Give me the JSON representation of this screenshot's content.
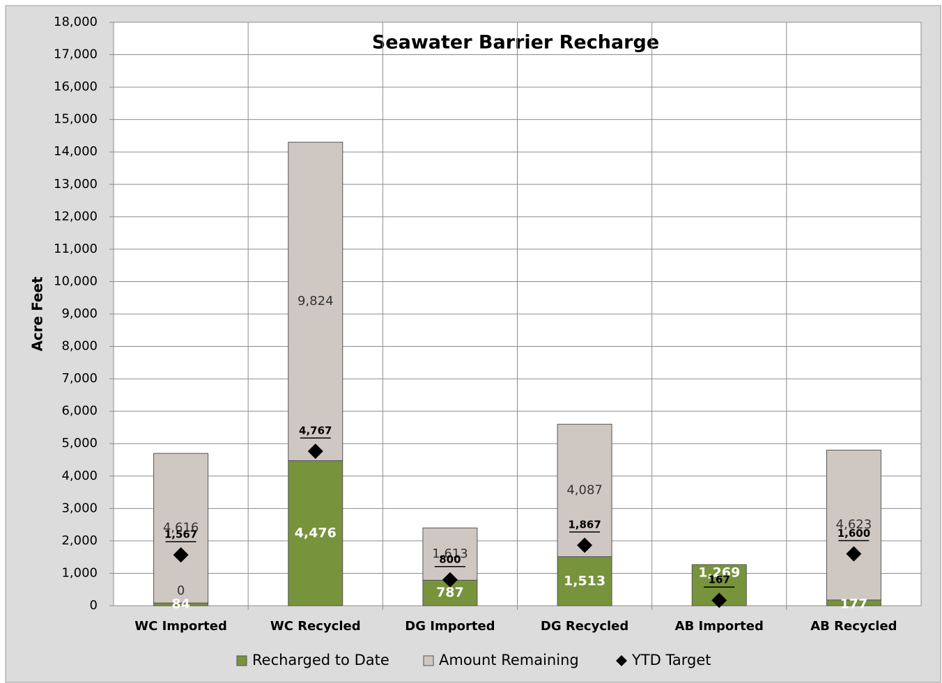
{
  "chart_data": {
    "type": "stacked-bar-with-markers",
    "title": "Seawater Barrier Recharge",
    "y_label": "Acre Feet",
    "categories": [
      "WC Imported",
      "WC Recycled",
      "DG Imported",
      "DG Recycled",
      "AB Imported",
      "AB Recycled"
    ],
    "series": [
      {
        "name": "Recharged to Date",
        "color": "#77933c",
        "kind": "bar",
        "values": [
          84,
          4476,
          787,
          1513,
          1269,
          177
        ],
        "value_labels": [
          "84",
          "4,476",
          "787",
          "1,513",
          "1,269",
          "177"
        ]
      },
      {
        "name": "Amount Remaining",
        "color": "#cfc7c2",
        "kind": "bar",
        "values": [
          4616,
          9824,
          1613,
          4087,
          0,
          4623
        ],
        "value_labels": [
          "4,616",
          "9,824",
          "1,613",
          "4,087",
          null,
          "4,623"
        ]
      },
      {
        "name": "YTD Target",
        "color": "#000000",
        "kind": "marker",
        "values": [
          1567,
          4767,
          800,
          1867,
          167,
          1600
        ],
        "value_labels": [
          "1,567",
          "4,767",
          "800",
          "1,867",
          "167",
          "1,600"
        ]
      }
    ],
    "annotations": [
      {
        "text": "0",
        "category": 0,
        "y": 450
      }
    ],
    "ylim": [
      0,
      18000
    ],
    "yticks": [
      0,
      {
        "value": 1000,
        "label": "1,000"
      },
      {
        "value": 2000,
        "label": "2,000"
      },
      {
        "value": 3000,
        "label": "3,000"
      },
      {
        "value": 4000,
        "label": "4,000"
      },
      {
        "value": 5000,
        "label": "5,000"
      },
      {
        "value": 6000,
        "label": "6,000"
      },
      {
        "value": 7000,
        "label": "7,000"
      },
      {
        "value": 8000,
        "label": "8,000"
      },
      {
        "value": 9000,
        "label": "9,000"
      },
      {
        "value": 10000,
        "label": "10,000"
      },
      {
        "value": 11000,
        "label": "11,000"
      },
      {
        "value": 12000,
        "label": "12,000"
      },
      {
        "value": 13000,
        "label": "13,000"
      },
      {
        "value": 14000,
        "label": "14,000"
      },
      {
        "value": 15000,
        "label": "15,000"
      },
      {
        "value": 16000,
        "label": "16,000"
      },
      {
        "value": 17000,
        "label": "17,000"
      },
      {
        "value": 18000,
        "label": "18,000"
      }
    ],
    "grid": true
  }
}
